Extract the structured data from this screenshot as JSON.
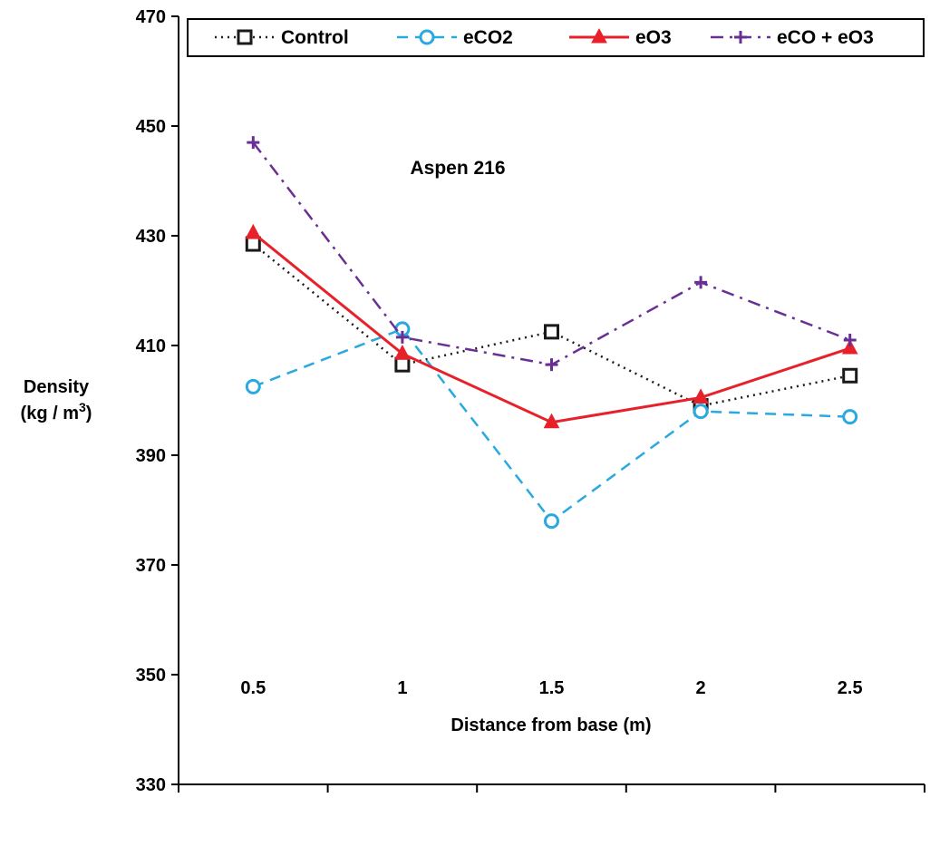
{
  "chart_data": {
    "type": "line",
    "x": [
      0.5,
      1,
      1.5,
      2,
      2.5
    ],
    "x_tick_labels": [
      "0.5",
      "1",
      "1.5",
      "2",
      "2.5"
    ],
    "y_tick_labels": [
      "330",
      "350",
      "370",
      "390",
      "410",
      "430",
      "450",
      "470"
    ],
    "ylim": [
      330,
      470
    ],
    "xlabel": "Distance from base (m)",
    "ylabel_line1": "Density",
    "ylabel_line2_prefix": "(kg / m",
    "ylabel_line2_sup": "3",
    "ylabel_line2_suffix": ")",
    "annotation": "Aspen 216",
    "grid": false,
    "legend_position": "top",
    "series": [
      {
        "name": "Control",
        "values": [
          428.5,
          406.5,
          412.5,
          399.0,
          404.5
        ],
        "color": "#1a1a1a",
        "style": "dotted",
        "marker": "square"
      },
      {
        "name": "eCO2",
        "values": [
          402.5,
          413.0,
          378.0,
          398.0,
          397.0
        ],
        "color": "#29a9e0",
        "style": "dashed",
        "marker": "circle"
      },
      {
        "name": "eO3",
        "values": [
          430.5,
          408.5,
          396.0,
          400.5,
          409.5
        ],
        "color": "#e8202a",
        "style": "solid",
        "marker": "triangle"
      },
      {
        "name": "eCO + eO3",
        "values": [
          447.0,
          411.5,
          406.5,
          421.5,
          411.0
        ],
        "color": "#6a2f93",
        "style": "dashdot",
        "marker": "plus"
      }
    ]
  }
}
